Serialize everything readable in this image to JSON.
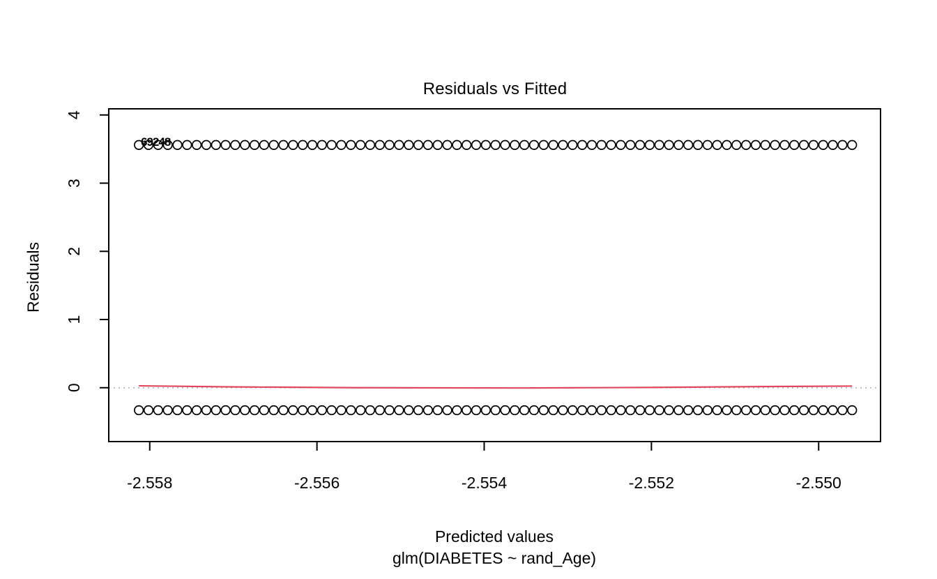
{
  "title": "Residuals vs Fitted",
  "y_axis": {
    "label": "Residuals",
    "tick_labels": [
      "0",
      "1",
      "2",
      "3",
      "4"
    ]
  },
  "x_axis": {
    "label": "Predicted values",
    "sub_label": "glm(DIABETES ~ rand_Age)",
    "tick_labels": [
      "-2.558",
      "-2.556",
      "-2.554",
      "-2.552",
      "-2.550"
    ]
  },
  "point_label_cluster": "69248",
  "colors": {
    "points": "#000000",
    "smoother_line": "#e0485e",
    "reference_line": "#b5b5b5",
    "axis": "#000000",
    "background": "#ffffff"
  },
  "chart_data": {
    "type": "scatter",
    "title": "Residuals vs Fitted",
    "xlabel": "Predicted values",
    "xlabel_sub": "glm(DIABETES ~ rand_Age)",
    "ylabel": "Residuals",
    "xlim": [
      -2.55849,
      -2.54926
    ],
    "ylim": [
      -0.79,
      4.09
    ],
    "x_ticks": [
      -2.558,
      -2.556,
      -2.554,
      -2.552,
      -2.55
    ],
    "y_ticks": [
      0,
      1,
      2,
      3,
      4
    ],
    "grid": false,
    "legend": false,
    "series": [
      {
        "name": "positive-residual-band",
        "marker": "open-circle",
        "x_start": -2.55813,
        "x_end": -2.5496,
        "count": 75,
        "y": 3.56
      },
      {
        "name": "negative-residual-band",
        "marker": "open-circle",
        "x_start": -2.55813,
        "x_end": -2.5496,
        "count": 75,
        "y": -0.33
      }
    ],
    "smoother": {
      "name": "red-loess-smoother",
      "color": "#e0485e",
      "points": [
        [
          -2.55813,
          0.028
        ],
        [
          -2.557,
          0.012
        ],
        [
          -2.5555,
          0.0
        ],
        [
          -2.5535,
          -0.004
        ],
        [
          -2.552,
          0.004
        ],
        [
          -2.5505,
          0.018
        ],
        [
          -2.5496,
          0.024
        ]
      ]
    },
    "reference_line": {
      "name": "zero-dotted-line",
      "y": 0,
      "style": "dotted",
      "color": "#b5b5b5"
    },
    "labeled_points_text": "69248"
  }
}
